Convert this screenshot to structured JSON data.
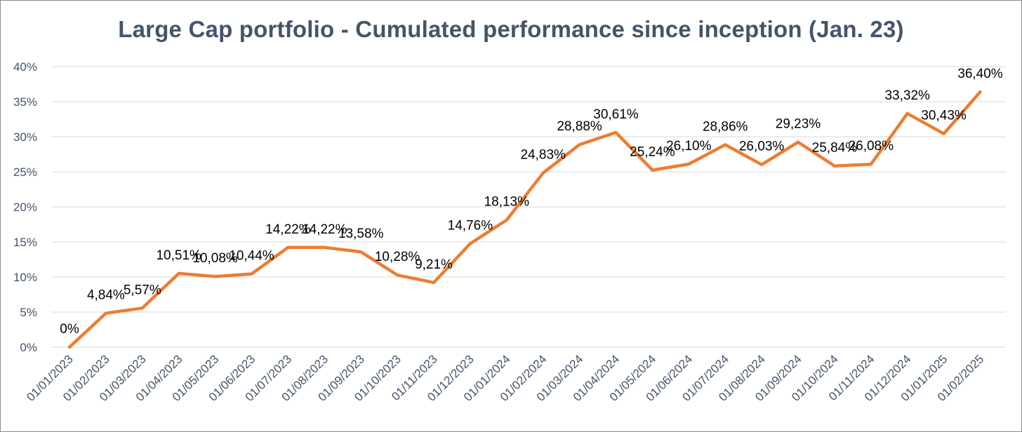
{
  "chart_data": {
    "type": "line",
    "title": "Large Cap portfolio - Cumulated performance since inception (Jan. 23)",
    "xlabel": "",
    "ylabel": "",
    "ylim": [
      0,
      40
    ],
    "y_ticks": [
      "0%",
      "5%",
      "10%",
      "15%",
      "20%",
      "25%",
      "30%",
      "35%",
      "40%"
    ],
    "grid": true,
    "legend": "none",
    "line_color": "#ed7d31",
    "categories": [
      "01/01/2023",
      "01/02/2023",
      "01/03/2023",
      "01/04/2023",
      "01/05/2023",
      "01/06/2023",
      "01/07/2023",
      "01/08/2023",
      "01/09/2023",
      "01/10/2023",
      "01/11/2023",
      "01/12/2023",
      "01/01/2024",
      "01/02/2024",
      "01/03/2024",
      "01/04/2024",
      "01/05/2024",
      "01/06/2024",
      "01/07/2024",
      "01/08/2024",
      "01/09/2024",
      "01/10/2024",
      "01/11/2024",
      "01/12/2024",
      "01/01/2025",
      "01/02/2025"
    ],
    "values": [
      0,
      4.84,
      5.57,
      10.51,
      10.08,
      10.44,
      14.22,
      14.22,
      13.58,
      10.28,
      9.21,
      14.76,
      18.13,
      24.83,
      28.88,
      30.61,
      25.24,
      26.1,
      28.86,
      26.03,
      29.23,
      25.84,
      26.08,
      33.32,
      30.43,
      36.4
    ],
    "data_labels": [
      "0%",
      "4,84%",
      "5,57%",
      "10,51%",
      "10,08%",
      "10,44%",
      "14,22%",
      "14,22%",
      "13,58%",
      "10,28%",
      "9,21%",
      "14,76%",
      "18,13%",
      "24,83%",
      "28,88%",
      "30,61%",
      "25,24%",
      "26,10%",
      "28,86%",
      "26,03%",
      "29,23%",
      "25,84%",
      "26,08%",
      "33,32%",
      "30,43%",
      "36,40%"
    ]
  }
}
